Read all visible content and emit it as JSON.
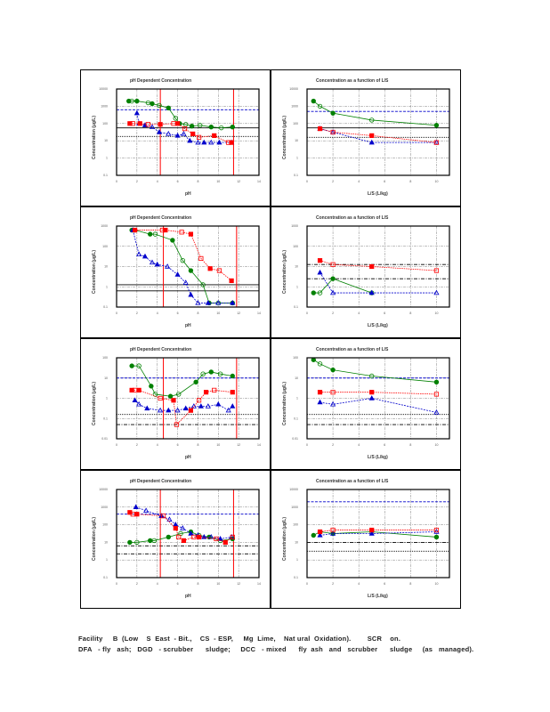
{
  "caption": {
    "line1": "Facility     B  (Low    S  East  - Bit.,    CS  - ESP,     Mg  Lime,    Nat ural  Oxidation).        SCR    on.",
    "line2": "DFA   - fly   ash;   DGD   - scrubber      sludge;     DCC   - mixed      fly  ash   and   scrubber      sludge     (as   managed)."
  },
  "colors": {
    "green": "#008000",
    "blue": "#0000cc",
    "red": "#ff0000",
    "black": "#000000",
    "grid": "#808080"
  },
  "chart_data": [
    {
      "type": "scatter",
      "panel": "row1-ph",
      "title": "pH Dependent Concentration",
      "xlabel": "pH",
      "ylabel": "Concentration (µg/L)",
      "xlim": [
        0,
        14
      ],
      "ylim_log10": [
        -1,
        4
      ],
      "xticks": [
        "0",
        "2",
        "4",
        "6",
        "8",
        "10",
        "12",
        "14"
      ],
      "yticks": [
        "0.1",
        "1",
        "10",
        "100",
        "1000",
        "10000"
      ],
      "vlines": [
        4.3,
        11.5
      ],
      "hlines": [
        {
          "y": 2.8,
          "color": "blue",
          "style": "dashed"
        },
        {
          "y": 1.75,
          "color": "black",
          "style": "solid"
        },
        {
          "y": 1.25,
          "color": "black",
          "style": "dotted"
        }
      ],
      "series": [
        {
          "name": "DFA",
          "color": "green",
          "marker": "diamond",
          "x": [
            1.2,
            1.5,
            2,
            3.1,
            3.5,
            4.2,
            5.1,
            5.8,
            6.2,
            6.8,
            7.4,
            8.2,
            9.3,
            10.3,
            11.4
          ],
          "y": [
            3.3,
            3.3,
            3.3,
            3.2,
            3.15,
            3.05,
            2.9,
            2.3,
            2.0,
            1.95,
            1.85,
            1.9,
            1.8,
            1.75,
            1.8
          ]
        },
        {
          "name": "DGD",
          "color": "blue",
          "marker": "triangle",
          "x": [
            2.0,
            2.2,
            2.8,
            3.5,
            4.2,
            5.1,
            6.0,
            6.6,
            7.2,
            8.0,
            8.6,
            9.3,
            10.1,
            11.3
          ],
          "y": [
            2.6,
            2.0,
            1.9,
            1.8,
            1.5,
            1.4,
            1.3,
            1.4,
            1.0,
            0.9,
            0.9,
            0.9,
            0.9,
            0.9
          ]
        },
        {
          "name": "DCC",
          "color": "red",
          "marker": "square",
          "x": [
            1.3,
            1.6,
            2.3,
            3.1,
            4.3,
            5.6,
            6.0,
            6.7,
            7.5,
            8.1,
            9.6,
            11.0,
            11.3
          ],
          "y": [
            2.0,
            2.0,
            2.0,
            1.95,
            1.95,
            2.0,
            2.0,
            1.7,
            1.4,
            1.2,
            1.3,
            0.9,
            0.9
          ]
        }
      ]
    },
    {
      "type": "line",
      "panel": "row1-ls",
      "title": "Concentration as a function of L/S",
      "xlabel": "L/S (L/kg)",
      "ylabel": "Concentration (µg/L)",
      "xlim": [
        0,
        11
      ],
      "ylim_log10": [
        -1,
        4
      ],
      "xticks": [
        "0",
        "2",
        "4",
        "6",
        "8",
        "10"
      ],
      "yticks": [
        "0.1",
        "1",
        "10",
        "100",
        "1000",
        "10000"
      ],
      "hlines": [
        {
          "y": 2.7,
          "color": "blue",
          "style": "dashed"
        },
        {
          "y": 1.75,
          "color": "black",
          "style": "solid"
        },
        {
          "y": 1.2,
          "color": "black",
          "style": "dotted"
        }
      ],
      "series": [
        {
          "name": "DFA",
          "color": "green",
          "x": [
            0.5,
            1.0,
            2.0,
            5.0,
            10.0
          ],
          "y": [
            3.3,
            3.0,
            2.6,
            2.2,
            1.9
          ]
        },
        {
          "name": "DGD",
          "color": "blue",
          "x": [
            1.0,
            2.0,
            5.0,
            10.0
          ],
          "y": [
            1.7,
            1.5,
            0.9,
            0.9
          ]
        },
        {
          "name": "DCC",
          "color": "red",
          "x": [
            1.0,
            2.0,
            5.0,
            10.0
          ],
          "y": [
            1.7,
            1.5,
            1.3,
            0.9
          ]
        }
      ]
    },
    {
      "type": "scatter",
      "panel": "row2-ph",
      "title": "pH Dependent Concentration",
      "xlabel": "pH",
      "ylabel": "Concentration (µg/L)",
      "xlim": [
        0,
        14
      ],
      "ylim_log10": [
        -1,
        3
      ],
      "xticks": [
        "0",
        "2",
        "4",
        "6",
        "8",
        "10",
        "12",
        "14"
      ],
      "yticks": [
        "0.1",
        "1",
        "10",
        "100",
        "1000"
      ],
      "vlines": [
        4.6,
        11.8
      ],
      "hlines": [
        {
          "y": 0.1,
          "color": "black",
          "style": "solid"
        },
        {
          "y": -0.2,
          "color": "black",
          "style": "solid"
        }
      ],
      "series": [
        {
          "name": "DFA",
          "color": "green",
          "x": [
            1.5,
            1.8,
            3.3,
            3.8,
            5.5,
            6.5,
            7.3,
            8.5,
            9.1,
            10.0,
            11.4
          ],
          "y": [
            2.8,
            2.8,
            2.6,
            2.6,
            2.3,
            1.3,
            0.8,
            0.1,
            -0.8,
            -0.8,
            -0.8
          ]
        },
        {
          "name": "DGD",
          "color": "blue",
          "x": [
            1.6,
            2.2,
            2.8,
            3.5,
            4.0,
            5.0,
            6.0,
            6.8,
            7.3,
            8.0,
            9.0,
            10.0,
            11.4
          ],
          "y": [
            2.8,
            1.6,
            1.5,
            1.2,
            1.1,
            1.0,
            0.6,
            0.2,
            -0.4,
            -0.8,
            -0.8,
            -0.8,
            -0.8
          ]
        },
        {
          "name": "DCC",
          "color": "red",
          "x": [
            1.8,
            4.5,
            4.8,
            6.4,
            7.3,
            8.3,
            9.2,
            10.1,
            11.3
          ],
          "y": [
            2.8,
            2.8,
            2.8,
            2.7,
            2.6,
            1.4,
            0.9,
            0.8,
            0.3
          ]
        }
      ]
    },
    {
      "type": "line",
      "panel": "row2-ls",
      "title": "Concentration as a function of L/S",
      "xlabel": "L/S (L/kg)",
      "ylabel": "Concentration (µg/L)",
      "xlim": [
        0,
        11
      ],
      "ylim_log10": [
        -1,
        3
      ],
      "xticks": [
        "0",
        "2",
        "4",
        "6",
        "8",
        "10"
      ],
      "yticks": [
        "0.1",
        "1",
        "10",
        "100",
        "1000"
      ],
      "hlines": [
        {
          "y": 1.1,
          "color": "black",
          "style": "dashdot"
        },
        {
          "y": 0.4,
          "color": "black",
          "style": "dashdot"
        }
      ],
      "series": [
        {
          "name": "DFA",
          "color": "green",
          "x": [
            0.5,
            1.0,
            2.0,
            5.0
          ],
          "y": [
            -0.3,
            -0.3,
            0.4,
            -0.3
          ]
        },
        {
          "name": "DGD",
          "color": "blue",
          "x": [
            1.0,
            2.0,
            5.0,
            10.0
          ],
          "y": [
            0.7,
            -0.3,
            -0.3,
            -0.3
          ]
        },
        {
          "name": "DCC",
          "color": "red",
          "x": [
            1.0,
            2.0,
            5.0,
            10.0
          ],
          "y": [
            1.3,
            1.1,
            1.0,
            0.8
          ]
        }
      ]
    },
    {
      "type": "scatter",
      "panel": "row3-ph",
      "title": "pH Dependent Concentration",
      "xlabel": "pH",
      "ylabel": "Concentration (µg/L)",
      "xlim": [
        0,
        14
      ],
      "ylim_log10": [
        -2,
        2
      ],
      "xticks": [
        "0",
        "2",
        "4",
        "6",
        "8",
        "10",
        "12",
        "14"
      ],
      "yticks": [
        "0.01",
        "0.1",
        "1",
        "10",
        "100"
      ],
      "vlines": [
        4.6,
        11.8
      ],
      "hlines": [
        {
          "y": 1.0,
          "color": "blue",
          "style": "dashed"
        },
        {
          "y": -0.8,
          "color": "black",
          "style": "dotted"
        },
        {
          "y": -1.3,
          "color": "black",
          "style": "dashdot"
        }
      ],
      "series": [
        {
          "name": "DFA",
          "color": "green",
          "x": [
            1.5,
            2.2,
            3.4,
            3.8,
            5.3,
            6.1,
            7.8,
            8.5,
            9.3,
            10.2,
            11.4
          ],
          "y": [
            1.6,
            1.6,
            0.6,
            0.2,
            0.1,
            0.2,
            0.8,
            1.2,
            1.3,
            1.2,
            1.1
          ]
        },
        {
          "name": "DGD",
          "color": "blue",
          "x": [
            1.8,
            2.2,
            3.0,
            4.3,
            5.1,
            6.0,
            6.8,
            7.6,
            8.3,
            9.0,
            10.0,
            11.0,
            11.4
          ],
          "y": [
            -0.1,
            -0.3,
            -0.5,
            -0.6,
            -0.6,
            -0.6,
            -0.5,
            -0.4,
            -0.4,
            -0.4,
            -0.3,
            -0.6,
            -0.4
          ]
        },
        {
          "name": "DCC",
          "color": "red",
          "x": [
            1.5,
            1.8,
            2.2,
            4.3,
            5.6,
            5.9,
            7.3,
            8.1,
            8.8,
            9.6,
            11.4
          ],
          "y": [
            0.4,
            0.4,
            0.4,
            0.0,
            -0.1,
            -1.3,
            -0.6,
            -0.1,
            0.3,
            0.4,
            0.3
          ]
        }
      ]
    },
    {
      "type": "line",
      "panel": "row3-ls",
      "title": "Concentration as a function of L/S",
      "xlabel": "L/S (L/kg)",
      "ylabel": "Concentration (µg/L)",
      "xlim": [
        0,
        11
      ],
      "ylim_log10": [
        -2,
        2
      ],
      "xticks": [
        "0",
        "2",
        "4",
        "6",
        "8",
        "10"
      ],
      "yticks": [
        "0.01",
        "0.1",
        "1",
        "10",
        "100"
      ],
      "hlines": [
        {
          "y": 1.0,
          "color": "blue",
          "style": "dashed"
        },
        {
          "y": -0.8,
          "color": "black",
          "style": "dotted"
        },
        {
          "y": -1.3,
          "color": "black",
          "style": "dashdot"
        }
      ],
      "series": [
        {
          "name": "DFA",
          "color": "green",
          "x": [
            0.5,
            1.0,
            2.0,
            5.0,
            10.0
          ],
          "y": [
            1.9,
            1.7,
            1.4,
            1.1,
            0.8
          ]
        },
        {
          "name": "DGD",
          "color": "blue",
          "x": [
            1.0,
            2.0,
            5.0,
            10.0
          ],
          "y": [
            -0.2,
            -0.3,
            0.0,
            -0.7
          ]
        },
        {
          "name": "DCC",
          "color": "red",
          "x": [
            1.0,
            2.0,
            5.0,
            10.0
          ],
          "y": [
            0.3,
            0.3,
            0.3,
            0.2
          ]
        }
      ]
    },
    {
      "type": "scatter",
      "panel": "row4-ph",
      "title": "pH Dependent Concentration",
      "xlabel": "pH",
      "ylabel": "Concentration (µg/L)",
      "xlim": [
        0,
        14
      ],
      "ylim_log10": [
        -1,
        4
      ],
      "xticks": [
        "0",
        "2",
        "4",
        "6",
        "8",
        "10",
        "12",
        "14"
      ],
      "yticks": [
        "0.1",
        "1",
        "10",
        "100",
        "1000",
        "10000"
      ],
      "vlines": [
        4.3,
        11.5
      ],
      "hlines": [
        {
          "y": 2.6,
          "color": "blue",
          "style": "dashed"
        },
        {
          "y": 0.8,
          "color": "black",
          "style": "dashdot"
        },
        {
          "y": 0.35,
          "color": "black",
          "style": "dashdot"
        }
      ],
      "series": [
        {
          "name": "DFA",
          "color": "green",
          "x": [
            1.3,
            2.0,
            3.3,
            3.7,
            5.1,
            6.3,
            7.3,
            8.1,
            9.1,
            10.2,
            11.4
          ],
          "y": [
            1.0,
            1.0,
            1.1,
            1.1,
            1.3,
            1.5,
            1.6,
            1.4,
            1.3,
            1.1,
            1.2
          ]
        },
        {
          "name": "DGD",
          "color": "blue",
          "x": [
            1.9,
            2.9,
            4.4,
            5.2,
            5.8,
            6.5,
            7.3,
            8.0,
            8.6,
            9.3,
            10.2,
            11.3
          ],
          "y": [
            3.0,
            2.8,
            2.5,
            2.3,
            2.0,
            1.8,
            1.5,
            1.4,
            1.3,
            1.3,
            1.2,
            1.3
          ]
        },
        {
          "name": "DCC",
          "color": "red",
          "x": [
            1.3,
            1.6,
            2.0,
            4.6,
            5.8,
            6.1,
            6.6,
            7.6,
            8.1,
            9.8,
            10.7,
            11.4
          ],
          "y": [
            2.7,
            2.6,
            2.6,
            2.5,
            1.8,
            1.3,
            1.1,
            1.3,
            1.3,
            1.2,
            1.0,
            1.3
          ]
        }
      ]
    },
    {
      "type": "line",
      "panel": "row4-ls",
      "title": "Concentration as a function of L/S",
      "xlabel": "L/S (L/kg)",
      "ylabel": "Concentration (µg/L)",
      "xlim": [
        0,
        11
      ],
      "ylim_log10": [
        -1,
        4
      ],
      "xticks": [
        "0",
        "2",
        "4",
        "6",
        "8",
        "10"
      ],
      "yticks": [
        "0.1",
        "1",
        "10",
        "100",
        "1000",
        "10000"
      ],
      "hlines": [
        {
          "y": 3.3,
          "color": "blue",
          "style": "dashed"
        },
        {
          "y": 1.0,
          "color": "black",
          "style": "dashdot"
        },
        {
          "y": 0.5,
          "color": "black",
          "style": "dotted"
        }
      ],
      "series": [
        {
          "name": "DFA",
          "color": "green",
          "x": [
            0.5,
            1.0,
            2.0,
            5.0,
            10.0
          ],
          "y": [
            1.4,
            1.6,
            1.5,
            1.6,
            1.3
          ]
        },
        {
          "name": "DGD",
          "color": "blue",
          "x": [
            1.0,
            2.0,
            5.0,
            10.0
          ],
          "y": [
            1.4,
            1.5,
            1.5,
            1.6
          ]
        },
        {
          "name": "DCC",
          "color": "red",
          "x": [
            1.0,
            2.0,
            5.0,
            10.0
          ],
          "y": [
            1.6,
            1.7,
            1.7,
            1.7
          ]
        }
      ]
    }
  ]
}
